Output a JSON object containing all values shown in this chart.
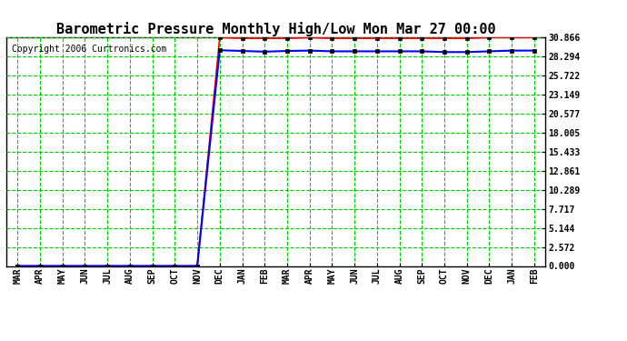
{
  "title": "Barometric Pressure Monthly High/Low Mon Mar 27 00:00",
  "copyright": "Copyright 2006 Curtronics.com",
  "x_labels": [
    "MAR",
    "APR",
    "MAY",
    "JUN",
    "JUL",
    "AUG",
    "SEP",
    "OCT",
    "NOV",
    "DEC",
    "JAN",
    "FEB",
    "MAR",
    "APR",
    "MAY",
    "JUN",
    "JUL",
    "AUG",
    "SEP",
    "OCT",
    "NOV",
    "DEC",
    "JAN",
    "FEB"
  ],
  "y_ticks": [
    0.0,
    2.572,
    5.144,
    7.717,
    10.289,
    12.861,
    15.433,
    18.005,
    20.577,
    23.149,
    25.722,
    28.294,
    30.866
  ],
  "y_min": 0.0,
  "y_max": 30.866,
  "red_values": [
    0.0,
    0.0,
    0.0,
    0.0,
    0.0,
    0.0,
    0.0,
    0.0,
    0.0,
    30.866,
    30.748,
    30.748,
    30.748,
    30.866,
    30.748,
    30.748,
    30.748,
    30.748,
    30.748,
    30.748,
    30.748,
    30.866,
    30.866,
    30.866
  ],
  "blue_values": [
    0.0,
    0.0,
    0.0,
    0.0,
    0.0,
    0.0,
    0.0,
    0.0,
    0.0,
    29.15,
    29.05,
    28.95,
    29.05,
    29.1,
    29.0,
    29.0,
    29.0,
    29.0,
    29.0,
    28.9,
    28.9,
    29.0,
    29.1,
    29.1
  ],
  "red_color": "#ff0000",
  "blue_color": "#0000ff",
  "green_grid_color": "#00cc00",
  "bg_color": "#ffffff",
  "border_color": "#000000",
  "title_fontsize": 11,
  "tick_fontsize": 7,
  "copyright_fontsize": 7,
  "fig_width": 6.9,
  "fig_height": 3.75,
  "dpi": 100
}
